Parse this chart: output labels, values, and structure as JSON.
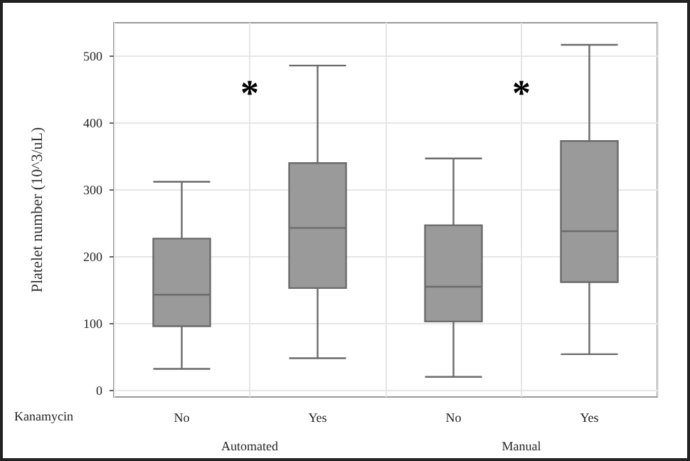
{
  "chart_data": {
    "type": "box",
    "categories": [
      "No",
      "Yes",
      "No",
      "Yes"
    ],
    "boxes": [
      {
        "low": 32,
        "q1": 96,
        "median": 143,
        "q3": 227,
        "high": 312
      },
      {
        "low": 48,
        "q1": 153,
        "median": 243,
        "q3": 340,
        "high": 486
      },
      {
        "low": 20,
        "q1": 103,
        "median": 155,
        "q3": 247,
        "high": 347
      },
      {
        "low": 54,
        "q1": 162,
        "median": 238,
        "q3": 373,
        "high": 517
      }
    ],
    "color": "#9a9a9a",
    "ylabel": "Platelet number (10^3/uL)",
    "xlabel": "Kanamycin",
    "ylim": [
      -10,
      550
    ],
    "yticks": [
      0,
      100,
      200,
      300,
      400,
      500
    ],
    "grid": true,
    "annotations": [
      "Automated",
      "Manual",
      "*",
      "*"
    ]
  }
}
